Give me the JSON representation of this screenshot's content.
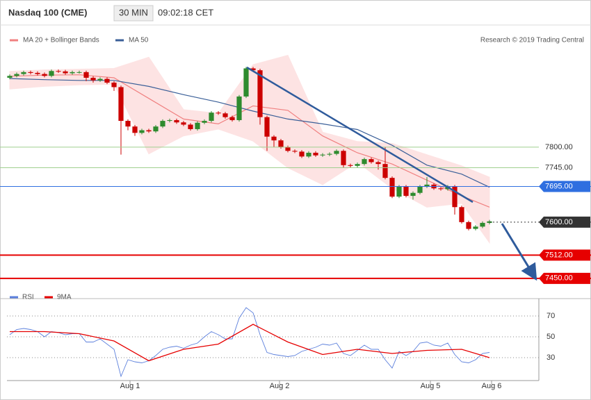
{
  "header": {
    "title": "Nasdaq 100 (CME)",
    "interval": "30 MIN",
    "time": "09:02:18 CET",
    "credit": "Research © 2019 Trading Central"
  },
  "chart_data": [
    {
      "type": "candlestick",
      "up_color": "#2e8b2e",
      "down_color": "#cc0000",
      "open": [
        7985,
        7990,
        7995,
        8000,
        7998,
        7995,
        7990,
        8003,
        8002,
        7997,
        8000,
        8000,
        7985,
        7978,
        7982,
        7972,
        7960,
        7870,
        7855,
        7838,
        7845,
        7842,
        7855,
        7870,
        7872,
        7866,
        7860,
        7848,
        7865,
        7870,
        7892,
        7890,
        7880,
        7872,
        7935,
        8010,
        8005,
        7880,
        7828,
        7818,
        7800,
        7790,
        7788,
        7775,
        7785,
        7778,
        7780,
        7782,
        7790,
        7752,
        7750,
        7755,
        7768,
        7760,
        7755,
        7718,
        7668,
        7695,
        7670,
        7678,
        7695,
        7700,
        7690,
        7688,
        7695,
        7640,
        7600,
        7582,
        7588,
        7598
      ],
      "high": [
        7994,
        7999,
        8004,
        8004,
        8002,
        7999,
        8007,
        8007,
        8006,
        8004,
        8004,
        8004,
        7989,
        7986,
        7986,
        7976,
        7964,
        7874,
        7859,
        7849,
        7849,
        7859,
        7874,
        7876,
        7876,
        7870,
        7864,
        7869,
        7874,
        7896,
        7896,
        7894,
        7884,
        7939,
        8014,
        8014,
        8009,
        7884,
        7832,
        7822,
        7804,
        7794,
        7792,
        7789,
        7789,
        7784,
        7786,
        7794,
        7794,
        7756,
        7759,
        7772,
        7772,
        7764,
        7800,
        7722,
        7699,
        7699,
        7682,
        7699,
        7720,
        7704,
        7694,
        7699,
        7699,
        7644,
        7604,
        7592,
        7602,
        7606
      ],
      "low": [
        7981,
        7986,
        7991,
        7994,
        7991,
        7986,
        7986,
        7998,
        7993,
        7993,
        7996,
        7976,
        7972,
        7974,
        7968,
        7950,
        7780,
        7845,
        7830,
        7834,
        7838,
        7838,
        7851,
        7866,
        7862,
        7856,
        7844,
        7844,
        7861,
        7866,
        7886,
        7876,
        7868,
        7868,
        7931,
        8001,
        7860,
        7790,
        7800,
        7796,
        7786,
        7784,
        7771,
        7771,
        7774,
        7774,
        7776,
        7778,
        7746,
        7746,
        7746,
        7751,
        7756,
        7740,
        7714,
        7664,
        7664,
        7666,
        7660,
        7674,
        7691,
        7686,
        7684,
        7684,
        7620,
        7596,
        7578,
        7578,
        7584,
        7594
      ],
      "close": [
        7990,
        7995,
        8000,
        7998,
        7995,
        7990,
        8003,
        8002,
        7997,
        8000,
        8000,
        7985,
        7978,
        7982,
        7972,
        7960,
        7870,
        7855,
        7838,
        7845,
        7842,
        7855,
        7870,
        7872,
        7866,
        7860,
        7848,
        7865,
        7870,
        7892,
        7890,
        7880,
        7872,
        7935,
        8010,
        8005,
        7880,
        7828,
        7818,
        7800,
        7790,
        7788,
        7775,
        7785,
        7778,
        7780,
        7782,
        7790,
        7752,
        7750,
        7755,
        7768,
        7760,
        7755,
        7718,
        7668,
        7695,
        7670,
        7678,
        7695,
        7700,
        7690,
        7688,
        7695,
        7640,
        7600,
        7582,
        7588,
        7598,
        7602
      ],
      "series": [
        {
          "name": "MA 20 + Bollinger Bands",
          "color": "#f08080",
          "band_color": "#fde3e3",
          "x": [
            0,
            5,
            10,
            15,
            20,
            25,
            30,
            35,
            40,
            45,
            50,
            55,
            60,
            65,
            69
          ],
          "values": [
            7989,
            7992,
            7993,
            7985,
            7930,
            7875,
            7862,
            7910,
            7898,
            7830,
            7785,
            7755,
            7712,
            7670,
            7640
          ],
          "upper": [
            8002,
            8006,
            8008,
            8010,
            8040,
            7900,
            7890,
            8020,
            8045,
            7840,
            7815,
            7810,
            7780,
            7750,
            7720
          ],
          "lower": [
            7955,
            7962,
            7966,
            7968,
            7782,
            7830,
            7848,
            7816,
            7745,
            7700,
            7760,
            7690,
            7640,
            7650,
            7545
          ]
        },
        {
          "name": "MA 50",
          "color": "#3a5f98",
          "x": [
            0,
            5,
            10,
            15,
            20,
            25,
            30,
            35,
            40,
            45,
            50,
            55,
            60,
            65,
            69
          ],
          "values": [
            7983,
            7980,
            7978,
            7978,
            7962,
            7940,
            7920,
            7896,
            7875,
            7862,
            7847,
            7805,
            7752,
            7728,
            7693
          ]
        }
      ],
      "levels": [
        {
          "value": 7800,
          "label": "7800.00",
          "color": "#9fcf8f",
          "line": "solid",
          "boxed": false
        },
        {
          "value": 7745,
          "label": "7745.00",
          "color": "#9fcf8f",
          "line": "solid",
          "boxed": false
        },
        {
          "value": 7695,
          "label": "7695.00",
          "color": "#2f6fe0",
          "line": "solid",
          "boxed": true
        },
        {
          "value": 7600,
          "label": "7600.00",
          "color": "#333333",
          "line": "dotted",
          "boxed": true
        },
        {
          "value": 7512,
          "label": "7512.00",
          "color": "#e60000",
          "line": "solid",
          "boxed": true
        },
        {
          "value": 7450,
          "label": "7450.00",
          "color": "#e60000",
          "line": "solid",
          "boxed": true
        }
      ],
      "xlim": [
        -0.4,
        76.1
      ],
      "ylim": [
        7396,
        8122
      ]
    },
    {
      "type": "line",
      "series": [
        {
          "name": "RSI",
          "color": "#5b7fdc",
          "x": [
            0,
            1,
            2,
            3,
            4,
            5,
            6,
            7,
            8,
            9,
            10,
            11,
            12,
            13,
            14,
            15,
            16,
            17,
            18,
            19,
            20,
            21,
            22,
            23,
            24,
            25,
            26,
            27,
            28,
            29,
            30,
            31,
            32,
            33,
            34,
            35,
            36,
            37,
            38,
            39,
            40,
            41,
            42,
            43,
            44,
            45,
            46,
            47,
            48,
            49,
            50,
            51,
            52,
            53,
            54,
            55,
            56,
            57,
            58,
            59,
            60,
            61,
            62,
            63,
            64,
            65,
            66,
            67,
            68,
            69
          ],
          "values": [
            52,
            57,
            58,
            57,
            55,
            50,
            55,
            54,
            52,
            53,
            53,
            45,
            45,
            48,
            43,
            38,
            12,
            28,
            26,
            25,
            27,
            32,
            38,
            40,
            41,
            39,
            42,
            44,
            50,
            55,
            52,
            48,
            48,
            68,
            78,
            73,
            52,
            35,
            33,
            32,
            31,
            32,
            36,
            38,
            40,
            43,
            42,
            44,
            34,
            32,
            37,
            42,
            38,
            38,
            28,
            20,
            36,
            32,
            36,
            44,
            45,
            42,
            41,
            44,
            33,
            26,
            25,
            28,
            34,
            35
          ]
        },
        {
          "name": "9MA",
          "color": "#e60000",
          "x": [
            0,
            5,
            10,
            15,
            20,
            25,
            30,
            35,
            40,
            45,
            50,
            55,
            60,
            65,
            69
          ],
          "values": [
            55,
            55,
            53,
            46,
            27,
            38,
            43,
            62,
            45,
            33,
            38,
            34,
            37,
            38,
            30
          ]
        }
      ],
      "xlim": [
        -0.4,
        76.1
      ],
      "ylim": [
        8,
        80
      ],
      "yticks": [
        30,
        50,
        70
      ],
      "grid": true,
      "xticks": [
        {
          "value": 17.3,
          "label": "Aug 1"
        },
        {
          "value": 38.8,
          "label": "Aug 2"
        },
        {
          "value": 60.5,
          "label": "Aug 5"
        },
        {
          "value": 69.3,
          "label": "Aug 6"
        }
      ]
    }
  ]
}
